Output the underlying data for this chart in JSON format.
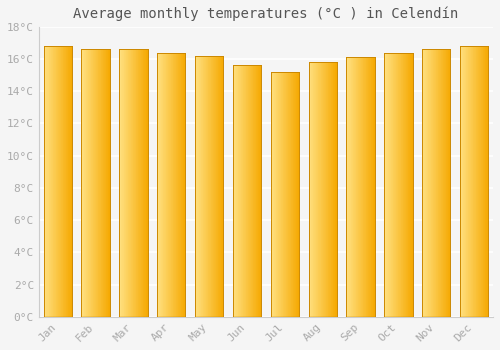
{
  "title": "Average monthly temperatures (°C ) in Celendín",
  "months": [
    "Jan",
    "Feb",
    "Mar",
    "Apr",
    "May",
    "Jun",
    "Jul",
    "Aug",
    "Sep",
    "Oct",
    "Nov",
    "Dec"
  ],
  "values": [
    16.8,
    16.6,
    16.6,
    16.4,
    16.2,
    15.6,
    15.2,
    15.8,
    16.1,
    16.4,
    16.6,
    16.8
  ],
  "ylim": [
    0,
    18
  ],
  "yticks": [
    0,
    2,
    4,
    6,
    8,
    10,
    12,
    14,
    16,
    18
  ],
  "bar_color_left": "#FFE080",
  "bar_color_right": "#F5A800",
  "bar_edge_color": "#CC8800",
  "background_color": "#F5F5F5",
  "grid_color": "#FFFFFF",
  "title_fontsize": 10,
  "tick_fontsize": 8,
  "tick_color": "#AAAAAA",
  "title_color": "#555555"
}
